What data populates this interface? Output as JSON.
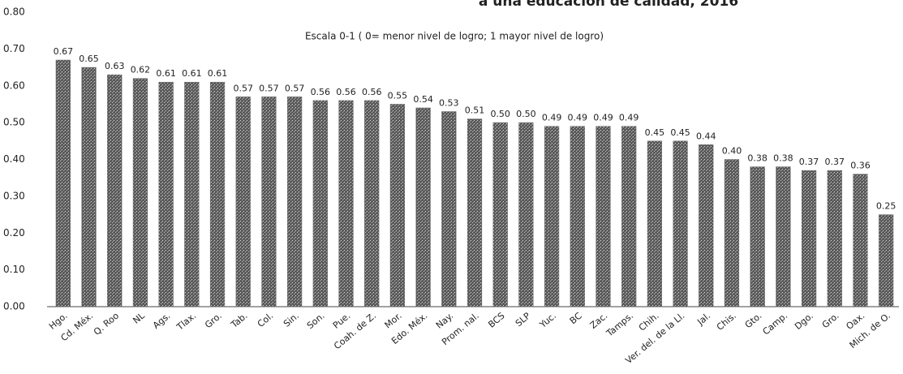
{
  "chart_data": {
    "type": "bar",
    "title": "a una educación de calidad, 2016",
    "subtitle": "Escala 0-1 ( 0= menor nivel de logro; 1 mayor nivel de logro)",
    "categories": [
      "Hgo.",
      "Cd. Méx.",
      "Q. Roo",
      "NL",
      "Ags.",
      "Tlax.",
      "Gro.",
      "Tab.",
      "Col.",
      "Sin.",
      "Son.",
      "Pue.",
      "Coah. de Z.",
      "Mor.",
      "Edo. Méx.",
      "Nay.",
      "Prom. nal.",
      "BCS",
      "SLP",
      "Yuc.",
      "BC",
      "Zac.",
      "Tamps.",
      "Chih.",
      "Ver. del. de la Ll.",
      "Jal.",
      "Chis.",
      "Gto.",
      "Camp.",
      "Dgo.",
      "Gro.",
      "Oax.",
      "Mich. de O."
    ],
    "values": [
      0.67,
      0.65,
      0.63,
      0.62,
      0.61,
      0.61,
      0.61,
      0.57,
      0.57,
      0.57,
      0.56,
      0.56,
      0.56,
      0.55,
      0.54,
      0.53,
      0.51,
      0.5,
      0.5,
      0.49,
      0.49,
      0.49,
      0.49,
      0.45,
      0.45,
      0.44,
      0.4,
      0.38,
      0.38,
      0.37,
      0.37,
      0.36,
      0.25
    ],
    "value_labels": [
      "0.67",
      "0.65",
      "0.63",
      "0.62",
      "0.61",
      "0.61",
      "0.61",
      "0.57",
      "0.57",
      "0.57",
      "0.56",
      "0.56",
      "0.56",
      "0.55",
      "0.54",
      "0.53",
      "0.51",
      "0.50",
      "0.50",
      "0.49",
      "0.49",
      "0.49",
      "0.49",
      "0.45",
      "0.45",
      "0.44",
      "0.40",
      "0.38",
      "0.38",
      "0.37",
      "0.37",
      "0.36",
      "0.25"
    ],
    "color": "#6e6e6e",
    "ylim": [
      0,
      0.8
    ],
    "yticks": [
      {
        "value": 0,
        "label": "0.00"
      },
      {
        "value": 0.1,
        "label": "0.10"
      },
      {
        "value": 0.2,
        "label": "0.20"
      },
      {
        "value": 0.3,
        "label": "0.30"
      },
      {
        "value": 0.4,
        "label": "0.40"
      },
      {
        "value": 0.5,
        "label": "0.50"
      },
      {
        "value": 0.6,
        "label": "0.60"
      },
      {
        "value": 0.7,
        "label": "0.70"
      },
      {
        "value": 0.8,
        "label": "0.80"
      }
    ],
    "grid": false
  }
}
